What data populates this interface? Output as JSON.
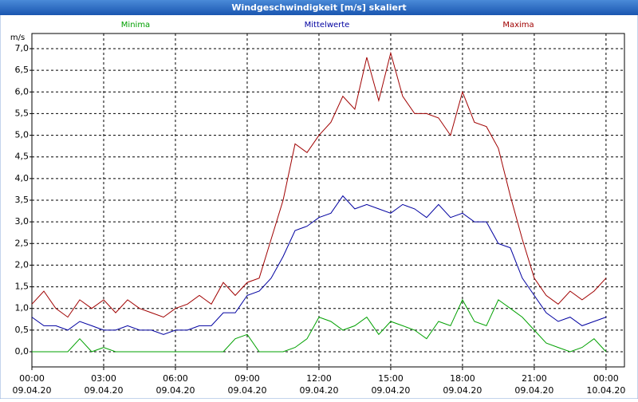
{
  "chart_data": {
    "type": "line",
    "title": "Windgeschwindigkeit [m/s] skaliert",
    "y_label": "m/s",
    "x": [
      0,
      0.5,
      1,
      1.5,
      2,
      2.5,
      3,
      3.5,
      4,
      4.5,
      5,
      5.5,
      6,
      6.5,
      7,
      7.5,
      8,
      8.5,
      9,
      9.5,
      10,
      10.5,
      11,
      11.5,
      12,
      12.5,
      13,
      13.5,
      14,
      14.5,
      15,
      15.5,
      16,
      16.5,
      17,
      17.5,
      18,
      18.5,
      19,
      19.5,
      20,
      20.5,
      21,
      21.5,
      22,
      22.5,
      23,
      23.5,
      24
    ],
    "series": [
      {
        "name": "Minima",
        "color": "#00a000",
        "values": [
          0,
          0,
          0,
          0,
          0.3,
          0,
          0.1,
          0,
          0,
          0,
          0,
          0,
          0,
          0,
          0,
          0,
          0,
          0.3,
          0.4,
          0,
          0,
          0,
          0.1,
          0.3,
          0.8,
          0.7,
          0.5,
          0.6,
          0.8,
          0.4,
          0.7,
          0.6,
          0.5,
          0.3,
          0.7,
          0.6,
          1.2,
          0.7,
          0.6,
          1.2,
          1.0,
          0.8,
          0.5,
          0.2,
          0.1,
          0,
          0.1,
          0.3,
          0
        ]
      },
      {
        "name": "Mittelwerte",
        "color": "#0000a0",
        "values": [
          0.8,
          0.6,
          0.6,
          0.5,
          0.7,
          0.6,
          0.5,
          0.5,
          0.6,
          0.5,
          0.5,
          0.4,
          0.5,
          0.5,
          0.6,
          0.6,
          0.9,
          0.9,
          1.3,
          1.4,
          1.7,
          2.2,
          2.8,
          2.9,
          3.1,
          3.2,
          3.6,
          3.3,
          3.4,
          3.3,
          3.2,
          3.4,
          3.3,
          3.1,
          3.4,
          3.1,
          3.2,
          3.0,
          3.0,
          2.5,
          2.4,
          1.7,
          1.3,
          0.9,
          0.7,
          0.8,
          0.6,
          0.7,
          0.8
        ]
      },
      {
        "name": "Maxima",
        "color": "#a00000",
        "values": [
          1.1,
          1.4,
          1.0,
          0.8,
          1.2,
          1.0,
          1.2,
          0.9,
          1.2,
          1.0,
          0.9,
          0.8,
          1.0,
          1.1,
          1.3,
          1.1,
          1.6,
          1.3,
          1.6,
          1.7,
          2.6,
          3.5,
          4.8,
          4.6,
          5.0,
          5.3,
          5.9,
          5.6,
          6.8,
          5.8,
          6.9,
          5.9,
          5.5,
          5.5,
          5.4,
          5.0,
          6.0,
          5.3,
          5.2,
          4.7,
          3.6,
          2.6,
          1.7,
          1.3,
          1.1,
          1.4,
          1.2,
          1.4,
          1.7
        ]
      }
    ],
    "xlim": [
      0,
      24.77
    ],
    "xticks": [
      {
        "value": 0,
        "label": "00:00",
        "date": "09.04.20"
      },
      {
        "value": 3,
        "label": "03:00",
        "date": "09.04.20"
      },
      {
        "value": 6,
        "label": "06:00",
        "date": "09.04.20"
      },
      {
        "value": 9,
        "label": "09:00",
        "date": "09.04.20"
      },
      {
        "value": 12,
        "label": "12:00",
        "date": "09.04.20"
      },
      {
        "value": 15,
        "label": "15:00",
        "date": "09.04.20"
      },
      {
        "value": 18,
        "label": "18:00",
        "date": "09.04.20"
      },
      {
        "value": 21,
        "label": "21:00",
        "date": "09.04.20"
      },
      {
        "value": 24,
        "label": "00:00",
        "date": "10.04.20"
      }
    ],
    "ylim": [
      -0.35,
      7.35
    ],
    "yticks": [
      {
        "value": 0,
        "label": "0,0"
      },
      {
        "value": 0.5,
        "label": "0,5"
      },
      {
        "value": 1,
        "label": "1,0"
      },
      {
        "value": 1.5,
        "label": "1,5"
      },
      {
        "value": 2,
        "label": "2,0"
      },
      {
        "value": 2.5,
        "label": "2,5"
      },
      {
        "value": 3,
        "label": "3,0"
      },
      {
        "value": 3.5,
        "label": "3,5"
      },
      {
        "value": 4,
        "label": "4,0"
      },
      {
        "value": 4.5,
        "label": "4,5"
      },
      {
        "value": 5,
        "label": "5,0"
      },
      {
        "value": 5.5,
        "label": "5,5"
      },
      {
        "value": 6,
        "label": "6,0"
      },
      {
        "value": 6.5,
        "label": "6,5"
      },
      {
        "value": 7,
        "label": "7,0"
      }
    ],
    "grid": true
  }
}
